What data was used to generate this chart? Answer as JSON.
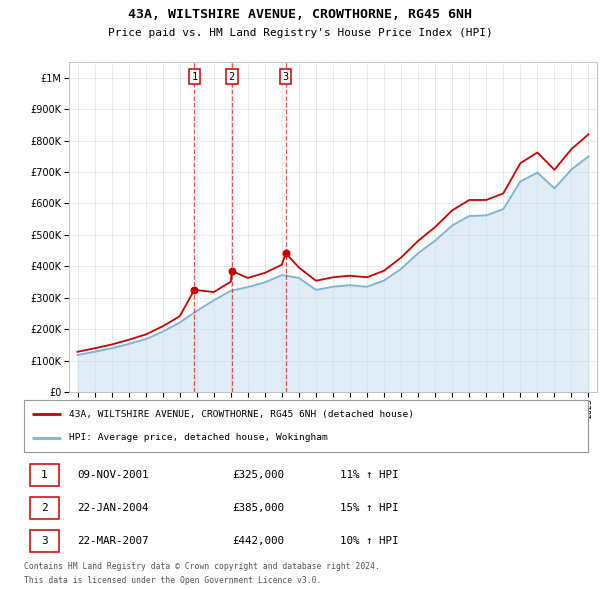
{
  "title": "43A, WILTSHIRE AVENUE, CROWTHORNE, RG45 6NH",
  "subtitle": "Price paid vs. HM Land Registry's House Price Index (HPI)",
  "legend_line1": "43A, WILTSHIRE AVENUE, CROWTHORNE, RG45 6NH (detached house)",
  "legend_line2": "HPI: Average price, detached house, Wokingham",
  "footer1": "Contains HM Land Registry data © Crown copyright and database right 2024.",
  "footer2": "This data is licensed under the Open Government Licence v3.0.",
  "transactions": [
    {
      "num": "1",
      "date": "09-NOV-2001",
      "price": "£325,000",
      "hpi": "11% ↑ HPI",
      "year": 2001.86
    },
    {
      "num": "2",
      "date": "22-JAN-2004",
      "price": "£385,000",
      "hpi": "15% ↑ HPI",
      "year": 2004.06
    },
    {
      "num": "3",
      "date": "22-MAR-2007",
      "price": "£442,000",
      "hpi": "10% ↑ HPI",
      "year": 2007.22
    }
  ],
  "transaction_prices": [
    325000,
    385000,
    442000
  ],
  "hpi_years": [
    1995,
    1996,
    1997,
    1998,
    1999,
    2000,
    2001,
    2002,
    2003,
    2004,
    2005,
    2006,
    2007,
    2008,
    2009,
    2010,
    2011,
    2012,
    2013,
    2014,
    2015,
    2016,
    2017,
    2018,
    2019,
    2020,
    2021,
    2022,
    2023,
    2024,
    2025
  ],
  "hpi_values": [
    118000,
    128000,
    139000,
    153000,
    168000,
    192000,
    221000,
    258000,
    292000,
    322000,
    334000,
    349000,
    372000,
    363000,
    325000,
    335000,
    340000,
    335000,
    355000,
    392000,
    442000,
    482000,
    530000,
    560000,
    562000,
    582000,
    670000,
    698000,
    648000,
    708000,
    750000
  ],
  "red_line_years": [
    1995,
    1996,
    1997,
    1998,
    1999,
    2000,
    2001,
    2001.86,
    2003,
    2004,
    2004.06,
    2005,
    2006,
    2007,
    2007.22,
    2008,
    2009,
    2010,
    2011,
    2012,
    2013,
    2014,
    2015,
    2016,
    2017,
    2018,
    2019,
    2020,
    2021,
    2022,
    2023,
    2024,
    2025
  ],
  "red_line_values": [
    128000,
    139000,
    151000,
    166000,
    183000,
    209000,
    241000,
    325000,
    318000,
    351000,
    385000,
    363000,
    379000,
    405000,
    442000,
    396000,
    354000,
    365000,
    370000,
    365000,
    386000,
    428000,
    481000,
    525000,
    578000,
    611000,
    611000,
    632000,
    728000,
    762000,
    707000,
    773000,
    820000
  ],
  "ylim": [
    0,
    1050000
  ],
  "xlim_start": 1994.5,
  "xlim_end": 2025.5,
  "vline_years": [
    2001.86,
    2004.06,
    2007.22
  ],
  "background_color": "#ffffff",
  "grid_color": "#e0e0e0",
  "red_color": "#cc0000",
  "blue_color": "#7fb3d3",
  "blue_fill": "#c8dff0"
}
